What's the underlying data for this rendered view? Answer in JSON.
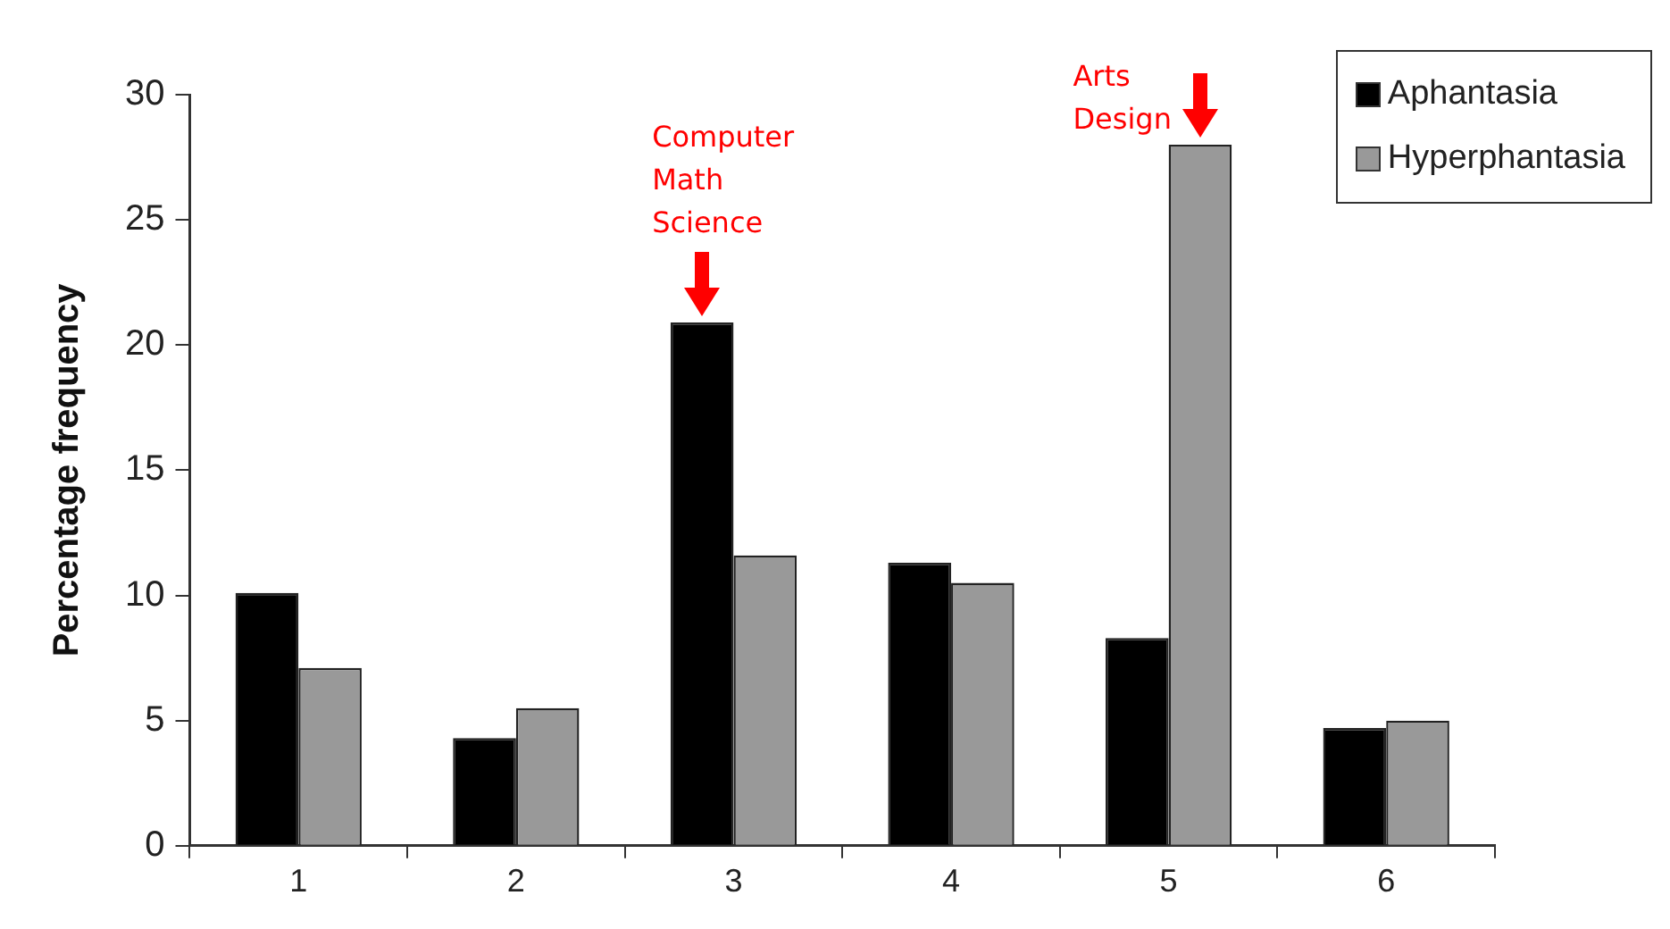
{
  "chart_data": {
    "type": "bar",
    "ylabel": "Percentage frequency",
    "categories": [
      "1",
      "2",
      "3",
      "4",
      "5",
      "6"
    ],
    "series": [
      {
        "name": "Aphantasia",
        "color": "#000000",
        "values": [
          10.1,
          4.3,
          20.9,
          11.3,
          8.3,
          4.7
        ]
      },
      {
        "name": "Hyperphantasia",
        "color": "#999999",
        "values": [
          7.1,
          5.5,
          11.6,
          10.5,
          28.0,
          5.0
        ]
      }
    ],
    "ylim": [
      0,
      30
    ],
    "yticks": [
      0,
      5,
      10,
      15,
      20,
      25,
      30
    ],
    "grid": false,
    "legend": "top right",
    "annotations": [
      {
        "text": "Computer\nMath\nScience",
        "x": "3",
        "y": 20.9
      },
      {
        "text": "Arts\nDesign",
        "x": "5",
        "y": 28.0
      }
    ]
  }
}
